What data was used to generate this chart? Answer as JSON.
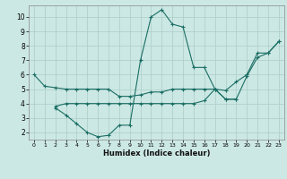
{
  "xlabel": "Humidex (Indice chaleur)",
  "bg_color": "#cce8e4",
  "line_color": "#1a6e64",
  "grid_color": "#aaccc8",
  "xlim": [
    -0.5,
    23.5
  ],
  "ylim": [
    1.5,
    10.8
  ],
  "xticks": [
    0,
    1,
    2,
    3,
    4,
    5,
    6,
    7,
    8,
    9,
    10,
    11,
    12,
    13,
    14,
    15,
    16,
    17,
    18,
    19,
    20,
    21,
    22,
    23
  ],
  "yticks": [
    2,
    3,
    4,
    5,
    6,
    7,
    8,
    9,
    10
  ],
  "line1_x": [
    0,
    1,
    2,
    3,
    4,
    5,
    6,
    7,
    8,
    9,
    10,
    11,
    12,
    13,
    14,
    15,
    16,
    17,
    18,
    19,
    20,
    21,
    22,
    23
  ],
  "line1_y": [
    6.0,
    5.2,
    5.1,
    5.0,
    5.0,
    5.0,
    5.0,
    5.0,
    4.5,
    4.5,
    4.6,
    4.8,
    4.8,
    5.0,
    5.0,
    5.0,
    5.0,
    5.0,
    4.9,
    5.5,
    6.0,
    7.5,
    7.5,
    8.3
  ],
  "line2_x": [
    2,
    3,
    4,
    5,
    6,
    7,
    8,
    9,
    10,
    11,
    12,
    13,
    14,
    15,
    16,
    17,
    18,
    19
  ],
  "line2_y": [
    3.7,
    3.2,
    2.6,
    2.0,
    1.7,
    1.8,
    2.5,
    2.5,
    7.0,
    10.0,
    10.5,
    9.5,
    9.3,
    6.5,
    6.5,
    5.0,
    4.3,
    4.3
  ],
  "line3_x": [
    2,
    3,
    4,
    5,
    6,
    7,
    8,
    9,
    10,
    11,
    12,
    13,
    14,
    15,
    16,
    17,
    18,
    19,
    20,
    21,
    22,
    23
  ],
  "line3_y": [
    3.8,
    4.0,
    4.0,
    4.0,
    4.0,
    4.0,
    4.0,
    4.0,
    4.0,
    4.0,
    4.0,
    4.0,
    4.0,
    4.0,
    4.2,
    5.0,
    4.3,
    4.3,
    5.9,
    7.2,
    7.5,
    8.3
  ]
}
